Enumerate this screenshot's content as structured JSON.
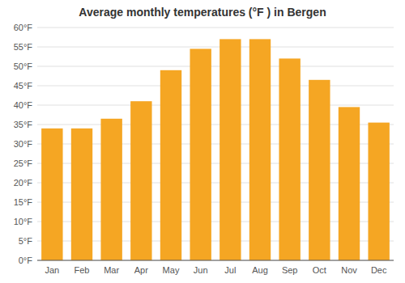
{
  "chart_data": {
    "type": "bar",
    "title": "Average monthly temperatures (°F ) in Bergen",
    "categories": [
      "Jan",
      "Feb",
      "Mar",
      "Apr",
      "May",
      "Jun",
      "Jul",
      "Aug",
      "Sep",
      "Oct",
      "Nov",
      "Dec"
    ],
    "values": [
      34,
      34,
      36.5,
      41,
      49,
      54.5,
      57,
      57,
      52,
      46.5,
      39.5,
      35.5
    ],
    "color": "#F5A623",
    "ylim": [
      0,
      60
    ],
    "yticks": [
      {
        "value": 0,
        "label": "0°F"
      },
      {
        "value": 5,
        "label": "5°F"
      },
      {
        "value": 10,
        "label": "10°F"
      },
      {
        "value": 15,
        "label": "15°F"
      },
      {
        "value": 20,
        "label": "20°F"
      },
      {
        "value": 25,
        "label": "25°F"
      },
      {
        "value": 30,
        "label": "30°F"
      },
      {
        "value": 35,
        "label": "35°F"
      },
      {
        "value": 40,
        "label": "40°F"
      },
      {
        "value": 45,
        "label": "45°F"
      },
      {
        "value": 50,
        "label": "50°F"
      },
      {
        "value": 55,
        "label": "55°F"
      },
      {
        "value": 60,
        "label": "60°F"
      }
    ],
    "grid": true
  }
}
